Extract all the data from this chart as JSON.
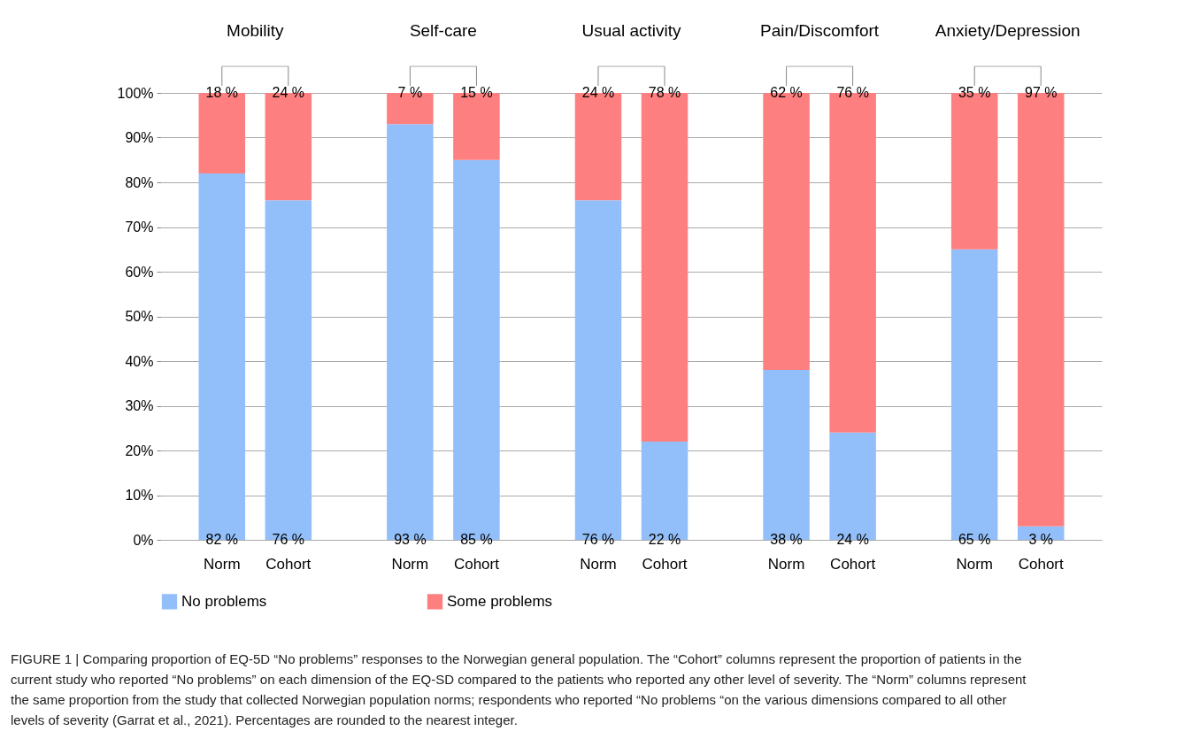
{
  "chart_data": {
    "type": "bar",
    "stacked": true,
    "categories": [
      "Norm",
      "Cohort",
      "Norm",
      "Cohort",
      "Norm",
      "Cohort",
      "Norm",
      "Cohort",
      "Norm",
      "Cohort"
    ],
    "series": [
      {
        "name": "No problems",
        "color": "#92bff9",
        "values": [
          82,
          76,
          93,
          85,
          76,
          22,
          38,
          24,
          65,
          3
        ],
        "value_labels": [
          "82 %",
          "76 %",
          "93 %",
          "85 %",
          "76 %",
          "22 %",
          "38 %",
          "24 %",
          "65 %",
          "3 %"
        ]
      },
      {
        "name": "Some problems",
        "color": "#fe7f7f",
        "values": [
          18,
          24,
          7,
          15,
          24,
          78,
          62,
          76,
          35,
          97
        ],
        "value_labels": [
          "18 %",
          "24 %",
          "7 %",
          "15 %",
          "24 %",
          "78 %",
          "62 %",
          "76 %",
          "35 %",
          "97 %"
        ]
      }
    ],
    "ylim": [
      0,
      100
    ],
    "yticks": [
      {
        "value": 0,
        "label": "0%"
      },
      {
        "value": 10,
        "label": "10%"
      },
      {
        "value": 20,
        "label": "20%"
      },
      {
        "value": 30,
        "label": "30%"
      },
      {
        "value": 40,
        "label": "40%"
      },
      {
        "value": 50,
        "label": "50%"
      },
      {
        "value": 60,
        "label": "60%"
      },
      {
        "value": 70,
        "label": "70%"
      },
      {
        "value": 80,
        "label": "80%"
      },
      {
        "value": 90,
        "label": "90%"
      },
      {
        "value": 100,
        "label": "100%"
      }
    ],
    "grid": "y",
    "legend": "bottom",
    "annotations": [
      "Mobility",
      "Self-care",
      "Usual activity",
      "Pain/Discomfort",
      "Anxiety/Depression",
      "FIGURE 1 | Comparing proportion of EQ-5D “No problems” responses to the Norwegian general population. The “Cohort” columns represent the proportion of patients in the current study who reported “No problems” on each dimension of the EQ-SD compared to the patients who reported any other level of severity. The “Norm” columns represent the same proportion from the study that collected Norwegian population norms; respondents who reported “No problems “on the various dimensions compared to all other levels of severity (Garrat et al., 2021). Percentages are rounded to the nearest integer."
    ]
  }
}
